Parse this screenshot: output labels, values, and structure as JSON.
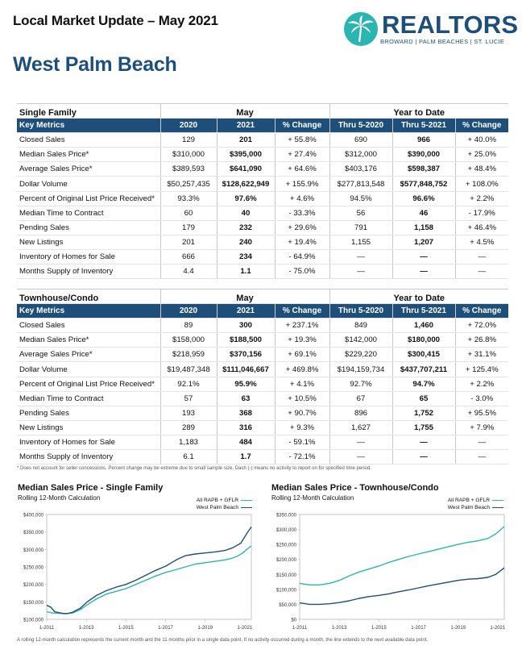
{
  "header": {
    "title": "Local Market Update – May 2021",
    "city": "West Palm Beach"
  },
  "logo": {
    "word": "REALTORS",
    "subtitle": "BROWARD | PALM BEACHES | ST. LUCIE",
    "brand_color": "#1d4f7a",
    "accent_color": "#2bb5b0",
    "icon": "palm-tree-icon"
  },
  "single_family": {
    "title": "Single Family",
    "group_may": "May",
    "group_ytd": "Year to Date",
    "columns": [
      "Key Metrics",
      "2020",
      "2021",
      "% Change",
      "Thru 5-2020",
      "Thru 5-2021",
      "% Change"
    ],
    "rows": [
      [
        "Closed Sales",
        "129",
        "201",
        "+ 55.8%",
        "690",
        "966",
        "+ 40.0%"
      ],
      [
        "Median Sales Price*",
        "$310,000",
        "$395,000",
        "+ 27.4%",
        "$312,000",
        "$390,000",
        "+ 25.0%"
      ],
      [
        "Average Sales Price*",
        "$389,593",
        "$641,090",
        "+ 64.6%",
        "$403,176",
        "$598,387",
        "+ 48.4%"
      ],
      [
        "Dollar Volume",
        "$50,257,435",
        "$128,622,949",
        "+ 155.9%",
        "$277,813,548",
        "$577,848,752",
        "+ 108.0%"
      ],
      [
        "Percent of Original List Price Received*",
        "93.3%",
        "97.6%",
        "+ 4.6%",
        "94.5%",
        "96.6%",
        "+ 2.2%"
      ],
      [
        "Median Time to Contract",
        "60",
        "40",
        "- 33.3%",
        "56",
        "46",
        "- 17.9%"
      ],
      [
        "Pending Sales",
        "179",
        "232",
        "+ 29.6%",
        "791",
        "1,158",
        "+ 46.4%"
      ],
      [
        "New Listings",
        "201",
        "240",
        "+ 19.4%",
        "1,155",
        "1,207",
        "+ 4.5%"
      ],
      [
        "Inventory of Homes for Sale",
        "666",
        "234",
        "- 64.9%",
        "—",
        "—",
        "—"
      ],
      [
        "Months Supply of Inventory",
        "4.4",
        "1.1",
        "- 75.0%",
        "—",
        "—",
        "—"
      ]
    ]
  },
  "townhouse": {
    "title": "Townhouse/Condo",
    "group_may": "May",
    "group_ytd": "Year to Date",
    "columns": [
      "Key Metrics",
      "2020",
      "2021",
      "% Change",
      "Thru 5-2020",
      "Thru 5-2021",
      "% Change"
    ],
    "rows": [
      [
        "Closed Sales",
        "89",
        "300",
        "+ 237.1%",
        "849",
        "1,460",
        "+ 72.0%"
      ],
      [
        "Median Sales Price*",
        "$158,000",
        "$188,500",
        "+ 19.3%",
        "$142,000",
        "$180,000",
        "+ 26.8%"
      ],
      [
        "Average Sales Price*",
        "$218,959",
        "$370,156",
        "+ 69.1%",
        "$229,220",
        "$300,415",
        "+ 31.1%"
      ],
      [
        "Dollar Volume",
        "$19,487,348",
        "$111,046,667",
        "+ 469.8%",
        "$194,159,734",
        "$437,707,211",
        "+ 125.4%"
      ],
      [
        "Percent of Original List Price Received*",
        "92.1%",
        "95.9%",
        "+ 4.1%",
        "92.7%",
        "94.7%",
        "+ 2.2%"
      ],
      [
        "Median Time to Contract",
        "57",
        "63",
        "+ 10.5%",
        "67",
        "65",
        "- 3.0%"
      ],
      [
        "Pending Sales",
        "193",
        "368",
        "+ 90.7%",
        "896",
        "1,752",
        "+ 95.5%"
      ],
      [
        "New Listings",
        "289",
        "316",
        "+ 9.3%",
        "1,627",
        "1,755",
        "+ 7.9%"
      ],
      [
        "Inventory of Homes for Sale",
        "1,183",
        "484",
        "- 59.1%",
        "—",
        "—",
        "—"
      ],
      [
        "Months Supply of Inventory",
        "6.1",
        "1.7",
        "- 72.1%",
        "—",
        "—",
        "—"
      ]
    ]
  },
  "note": "* Does not account for seller concessions. Percent change may be extreme due to small sample size. Dash (-) means no activity to report on for specified time period.",
  "footnote": "A rolling 12-month calculation represents the current month and the 11 months prior in a single data point. If no activity occurred during a month, the line extends to the next available data point.",
  "chart_data": [
    {
      "type": "line",
      "title": "Median Sales Price - Single Family",
      "subtitle": "Rolling 12-Month Calculation",
      "x_ticks": [
        "1-2011",
        "1-2013",
        "1-2015",
        "1-2017",
        "1-2019",
        "1-2021"
      ],
      "y_ticks": [
        "$100,000",
        "$150,000",
        "$200,000",
        "$250,000",
        "$300,000",
        "$350,000",
        "$400,000"
      ],
      "ylim": [
        100000,
        400000
      ],
      "xlim": [
        2011.0,
        2021.33
      ],
      "grid": false,
      "legend_position": "top-right",
      "series": [
        {
          "name": "All RAPB + GFLR",
          "color": "#2bb5b0",
          "x": [
            2011.0,
            2011.3,
            2011.6,
            2011.9,
            2012.3,
            2012.7,
            2013.0,
            2013.5,
            2014.0,
            2014.5,
            2015.0,
            2015.5,
            2016.0,
            2016.5,
            2017.0,
            2017.5,
            2018.0,
            2018.5,
            2019.0,
            2019.5,
            2020.0,
            2020.3,
            2020.6,
            2020.9,
            2021.1,
            2021.33
          ],
          "values": [
            122000,
            118000,
            117000,
            116000,
            118000,
            128000,
            140000,
            158000,
            172000,
            180000,
            188000,
            200000,
            212000,
            224000,
            234000,
            242000,
            250000,
            258000,
            262000,
            266000,
            270000,
            274000,
            280000,
            290000,
            300000,
            310000
          ]
        },
        {
          "name": "West Palm Beach",
          "color": "#1d4f7a",
          "x": [
            2011.0,
            2011.2,
            2011.4,
            2011.7,
            2012.0,
            2012.3,
            2012.7,
            2013.0,
            2013.5,
            2014.0,
            2014.5,
            2015.0,
            2015.5,
            2016.0,
            2016.5,
            2017.0,
            2017.3,
            2017.6,
            2018.0,
            2018.5,
            2019.0,
            2019.5,
            2020.0,
            2020.4,
            2020.8,
            2021.1,
            2021.33
          ],
          "values": [
            140000,
            135000,
            122000,
            118000,
            116000,
            120000,
            132000,
            148000,
            168000,
            182000,
            192000,
            200000,
            212000,
            226000,
            240000,
            252000,
            262000,
            272000,
            282000,
            287000,
            290000,
            293000,
            297000,
            305000,
            318000,
            345000,
            365000
          ]
        }
      ]
    },
    {
      "type": "line",
      "title": "Median Sales Price - Townhouse/Condo",
      "subtitle": "Rolling 12-Month Calculation",
      "x_ticks": [
        "1-2011",
        "1-2013",
        "1-2015",
        "1-2017",
        "1-2019",
        "1-2021"
      ],
      "y_ticks": [
        "$0",
        "$50,000",
        "$100,000",
        "$150,000",
        "$200,000",
        "$250,000",
        "$300,000",
        "$350,000"
      ],
      "ylim": [
        0,
        350000
      ],
      "xlim": [
        2011.0,
        2021.33
      ],
      "grid": false,
      "legend_position": "top-right",
      "series": [
        {
          "name": "All RAPB + GFLR",
          "color": "#2bb5b0",
          "x": [
            2011.0,
            2011.5,
            2012.0,
            2012.5,
            2013.0,
            2013.5,
            2014.0,
            2014.5,
            2015.0,
            2015.5,
            2016.0,
            2016.5,
            2017.0,
            2017.5,
            2018.0,
            2018.5,
            2019.0,
            2019.5,
            2020.0,
            2020.5,
            2020.9,
            2021.33
          ],
          "values": [
            120000,
            115000,
            115000,
            120000,
            130000,
            145000,
            158000,
            168000,
            178000,
            190000,
            200000,
            210000,
            218000,
            226000,
            234000,
            242000,
            250000,
            257000,
            262000,
            270000,
            285000,
            310000
          ]
        },
        {
          "name": "West Palm Beach",
          "color": "#1d4f7a",
          "x": [
            2011.0,
            2011.5,
            2012.0,
            2012.5,
            2013.0,
            2013.5,
            2014.0,
            2014.5,
            2015.0,
            2015.5,
            2016.0,
            2016.5,
            2017.0,
            2017.5,
            2018.0,
            2018.5,
            2019.0,
            2019.5,
            2020.0,
            2020.5,
            2020.9,
            2021.33
          ],
          "values": [
            55000,
            50000,
            50000,
            52000,
            56000,
            62000,
            70000,
            76000,
            80000,
            85000,
            92000,
            98000,
            105000,
            112000,
            118000,
            124000,
            130000,
            134000,
            136000,
            140000,
            150000,
            172000
          ]
        }
      ]
    }
  ]
}
